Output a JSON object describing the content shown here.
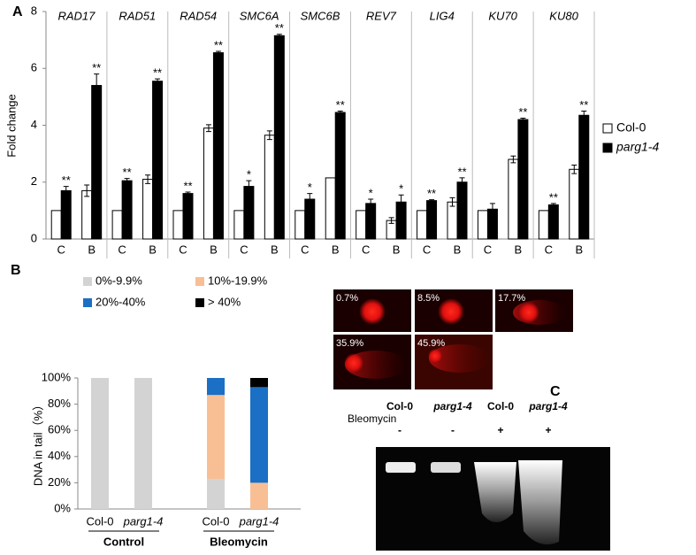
{
  "chart_data": [
    {
      "type": "bar",
      "panel": "A",
      "y_label": "Fold change",
      "groups": [
        "RAD17",
        "RAD51",
        "RAD54",
        "SMC6A",
        "SMC6B",
        "REV7",
        "LIG4",
        "KU70",
        "KU80"
      ],
      "categories": [
        "C",
        "B",
        "C",
        "B",
        "C",
        "B",
        "C",
        "B",
        "C",
        "B",
        "C",
        "B",
        "C",
        "B",
        "C",
        "B",
        "C",
        "B"
      ],
      "series": [
        {
          "name": "Col-0",
          "color": "#ffffff",
          "values": [
            1,
            1.7,
            1,
            2.1,
            1,
            3.9,
            1,
            3.65,
            1,
            2.15,
            1,
            0.65,
            1,
            1.3,
            1,
            2.8,
            1,
            2.45
          ],
          "errors": [
            null,
            0.2,
            null,
            0.15,
            null,
            0.12,
            null,
            0.15,
            null,
            null,
            null,
            0.1,
            null,
            0.15,
            null,
            0.12,
            null,
            0.15
          ]
        },
        {
          "name": "parg1-4",
          "color": "#000000",
          "values": [
            1.7,
            5.4,
            2.05,
            5.55,
            1.6,
            6.55,
            1.85,
            7.15,
            1.4,
            4.45,
            1.25,
            1.3,
            1.35,
            2.0,
            1.05,
            4.2,
            1.2,
            4.35
          ],
          "errors": [
            0.15,
            0.4,
            0.08,
            0.08,
            0.05,
            0.05,
            0.2,
            0.05,
            0.2,
            0.05,
            0.15,
            0.25,
            0.03,
            0.15,
            0.2,
            0.05,
            0.05,
            0.15
          ],
          "annotations": [
            "**",
            "**",
            "**",
            "**",
            "**",
            "**",
            "*",
            "**",
            "*",
            "**",
            "*",
            "*",
            "**",
            "**",
            null,
            "**",
            "**",
            "**"
          ]
        }
      ],
      "ylim": [
        0,
        8
      ],
      "yticks": [
        0,
        2,
        4,
        6,
        8
      ],
      "grid": false,
      "legend": "right"
    },
    {
      "type": "stacked_bar",
      "panel": "B",
      "y_label": "DNA in tail（%）",
      "groups": [
        "Control",
        "Bleomycin"
      ],
      "categories": [
        "Col-0",
        "parg1-4",
        "Col-0",
        "parg1-4"
      ],
      "series": [
        {
          "name": "0%-9.9%",
          "color": "#d3d3d3",
          "values": [
            100,
            100,
            23,
            0
          ]
        },
        {
          "name": "10%-19.9%",
          "color": "#f8bf95",
          "values": [
            0,
            0,
            64,
            20
          ]
        },
        {
          "name": "20%-40%",
          "color": "#1b6fc4",
          "values": [
            0,
            0,
            13,
            73
          ]
        },
        {
          "name": "> 40%",
          "color": "#000000",
          "values": [
            0,
            0,
            0,
            7
          ]
        }
      ],
      "ylim": [
        0,
        100
      ],
      "yticks": [
        {
          "value": 0,
          "label": "0%"
        },
        {
          "value": 20,
          "label": "20%"
        },
        {
          "value": 40,
          "label": "40%"
        },
        {
          "value": 60,
          "label": "60%"
        },
        {
          "value": 80,
          "label": "80%"
        },
        {
          "value": 100,
          "label": "100%"
        }
      ],
      "grid": false,
      "legend": "top"
    }
  ],
  "comet_assay": {
    "images": [
      "0.7%",
      "8.5%",
      "17.7%",
      "35.9%",
      "45.9%"
    ]
  },
  "gel": {
    "panel": "C",
    "treatment_label": "Bleomycin",
    "lanes": [
      {
        "label": "Col-0",
        "treatment": "-"
      },
      {
        "label": "parg1-4",
        "treatment": "-"
      },
      {
        "label": "Col-0",
        "treatment": "+"
      },
      {
        "label": "parg1-4",
        "treatment": "+"
      }
    ]
  }
}
